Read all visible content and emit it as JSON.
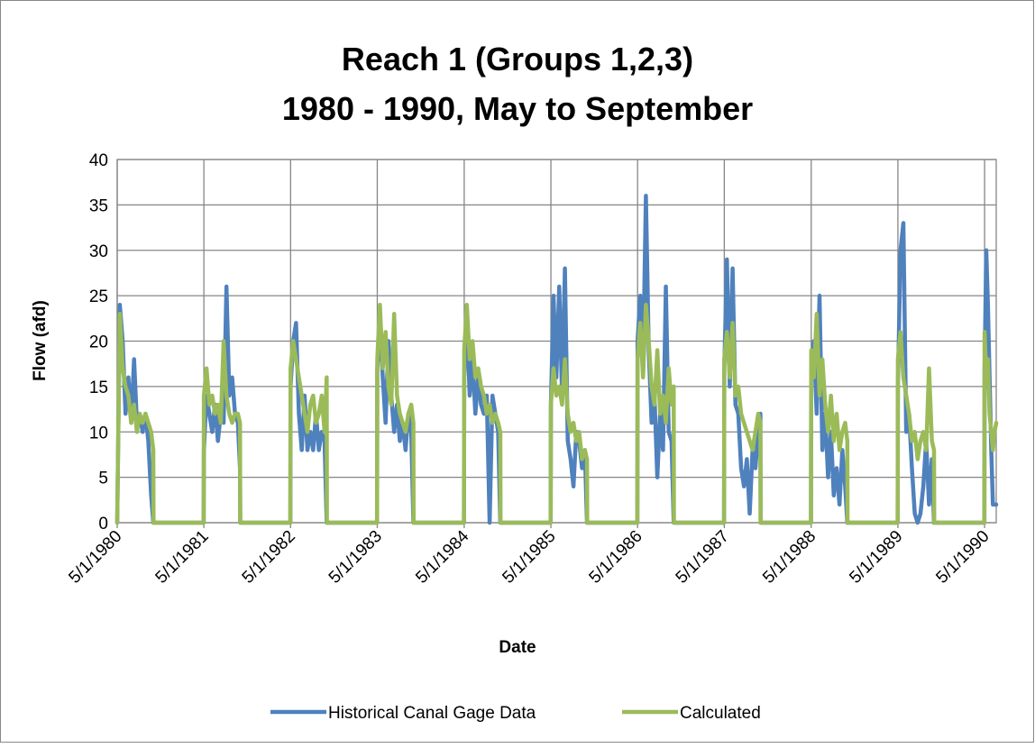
{
  "chart_data": {
    "type": "line",
    "title": "Reach 1 (Groups 1,2,3)",
    "subtitle": "1980 - 1990, May to September",
    "x_label": "Date",
    "y_label": "Flow (afd)",
    "grid": true,
    "legend": "bottom",
    "ylim": [
      0,
      40
    ],
    "yticks": [
      0,
      5,
      10,
      15,
      20,
      25,
      30,
      35,
      40
    ],
    "xlim": [
      "5/1/1980",
      "6/19/1990"
    ],
    "xticks": [
      "5/1/1980",
      "5/1/1981",
      "5/1/1982",
      "5/1/1983",
      "5/1/1984",
      "5/1/1985",
      "5/1/1986",
      "5/1/1987",
      "5/1/1988",
      "5/1/1989",
      "5/1/1990"
    ],
    "x": [
      "5/1/1980",
      "5/12/1980",
      "5/24/1980",
      "6/5/1980",
      "6/17/1980",
      "6/29/1980",
      "7/11/1980",
      "7/23/1980",
      "8/4/1980",
      "8/16/1980",
      "8/28/1980",
      "9/9/1980",
      "9/21/1980",
      "9/30/1980",
      "10/1/1980",
      "4/30/1981",
      "5/1/1981",
      "5/12/1981",
      "5/24/1981",
      "6/5/1981",
      "6/17/1981",
      "6/29/1981",
      "7/11/1981",
      "7/23/1981",
      "8/4/1981",
      "8/16/1981",
      "8/28/1981",
      "9/9/1981",
      "9/21/1981",
      "9/30/1981",
      "10/1/1981",
      "4/30/1982",
      "5/1/1982",
      "5/12/1982",
      "5/24/1982",
      "6/5/1982",
      "6/17/1982",
      "6/29/1982",
      "7/11/1982",
      "7/23/1982",
      "8/4/1982",
      "8/16/1982",
      "8/28/1982",
      "9/9/1982",
      "9/21/1982",
      "9/30/1982",
      "10/1/1982",
      "4/30/1983",
      "5/1/1983",
      "5/12/1983",
      "5/24/1983",
      "6/5/1983",
      "6/17/1983",
      "6/29/1983",
      "7/11/1983",
      "7/23/1983",
      "8/4/1983",
      "8/16/1983",
      "8/28/1983",
      "9/9/1983",
      "9/21/1983",
      "9/30/1983",
      "10/1/1983",
      "4/30/1984",
      "5/1/1984",
      "5/12/1984",
      "5/24/1984",
      "6/5/1984",
      "6/17/1984",
      "6/29/1984",
      "7/11/1984",
      "7/23/1984",
      "8/4/1984",
      "8/16/1984",
      "8/28/1984",
      "9/9/1984",
      "9/21/1984",
      "9/30/1984",
      "10/1/1984",
      "4/30/1985",
      "5/1/1985",
      "5/12/1985",
      "5/24/1985",
      "6/5/1985",
      "6/17/1985",
      "6/29/1985",
      "7/11/1985",
      "7/23/1985",
      "8/4/1985",
      "8/16/1985",
      "8/28/1985",
      "9/9/1985",
      "9/21/1985",
      "9/30/1985",
      "10/1/1985",
      "4/30/1986",
      "5/1/1986",
      "5/12/1986",
      "5/24/1986",
      "6/5/1986",
      "6/17/1986",
      "6/29/1986",
      "7/11/1986",
      "7/23/1986",
      "8/4/1986",
      "8/16/1986",
      "8/28/1986",
      "9/9/1986",
      "9/21/1986",
      "9/30/1986",
      "10/1/1986",
      "4/30/1987",
      "5/1/1987",
      "5/12/1987",
      "5/24/1987",
      "6/5/1987",
      "6/17/1987",
      "6/29/1987",
      "7/11/1987",
      "7/23/1987",
      "8/4/1987",
      "8/16/1987",
      "8/28/1987",
      "9/9/1987",
      "9/21/1987",
      "9/30/1987",
      "10/1/1987",
      "4/30/1988",
      "5/1/1988",
      "5/12/1988",
      "5/24/1988",
      "6/5/1988",
      "6/17/1988",
      "6/29/1988",
      "7/11/1988",
      "7/23/1988",
      "8/4/1988",
      "8/16/1988",
      "8/28/1988",
      "9/9/1988",
      "9/21/1988",
      "9/30/1988",
      "10/1/1988",
      "4/30/1989",
      "5/1/1989",
      "5/12/1989",
      "5/24/1989",
      "6/5/1989",
      "6/17/1989",
      "6/29/1989",
      "7/11/1989",
      "7/23/1989",
      "8/4/1989",
      "8/16/1989",
      "8/28/1989",
      "9/9/1989",
      "9/21/1989",
      "9/30/1989",
      "10/1/1989",
      "4/30/1990",
      "5/1/1990",
      "5/8/1990",
      "5/15/1990",
      "5/22/1990",
      "5/29/1990",
      "6/5/1990",
      "6/12/1990",
      "6/19/1990"
    ],
    "series": [
      {
        "name": "Historical Canal Gage Data",
        "color": "#4f81bd",
        "values": [
          0,
          24,
          20,
          12,
          16,
          11,
          18,
          11,
          12,
          10,
          12,
          9,
          3,
          0,
          0,
          0,
          8,
          14,
          12,
          10,
          13,
          9,
          12,
          11,
          26,
          14,
          16,
          12,
          11,
          6,
          0,
          0,
          15,
          20,
          22,
          12,
          8,
          14,
          8,
          10,
          8,
          12,
          8,
          10,
          9,
          0,
          0,
          0,
          17,
          22,
          16,
          11,
          20,
          14,
          10,
          13,
          9,
          11,
          8,
          12,
          10,
          0,
          0,
          0,
          16,
          23,
          14,
          18,
          12,
          16,
          13,
          12,
          14,
          0,
          14,
          12,
          10,
          0,
          0,
          0,
          13,
          25,
          16,
          26,
          14,
          28,
          9,
          7,
          4,
          10,
          9,
          6,
          8,
          0,
          0,
          0,
          20,
          25,
          17,
          36,
          19,
          11,
          14,
          5,
          12,
          8,
          26,
          10,
          9,
          0,
          0,
          0,
          17,
          29,
          15,
          28,
          13,
          12,
          6,
          4,
          7,
          1,
          8,
          6,
          10,
          12,
          0,
          0,
          17,
          20,
          12,
          25,
          8,
          12,
          5,
          10,
          3,
          6,
          2,
          8,
          4,
          0,
          0,
          0,
          15,
          30,
          33,
          10,
          12,
          6,
          1,
          0,
          1,
          4,
          9,
          2,
          7,
          0,
          0,
          0,
          17,
          30,
          24,
          16,
          8,
          2,
          2,
          2
        ]
      },
      {
        "name": "Calculated",
        "color": "#9bbb59",
        "values": [
          0,
          23,
          17,
          15,
          14,
          11,
          13,
          10,
          12,
          11,
          12,
          11,
          10,
          8,
          0,
          0,
          14,
          17,
          13,
          14,
          12,
          13,
          11,
          20,
          14,
          12,
          11,
          12,
          12,
          11,
          0,
          0,
          17,
          20,
          18,
          16,
          14,
          12,
          10,
          13,
          14,
          11,
          12,
          14,
          10,
          16,
          0,
          0,
          18,
          24,
          17,
          21,
          15,
          13,
          23,
          14,
          12,
          11,
          10,
          12,
          13,
          11,
          0,
          0,
          19,
          24,
          18,
          20,
          16,
          17,
          15,
          14,
          12,
          13,
          11,
          12,
          11,
          10,
          0,
          0,
          13,
          17,
          14,
          15,
          13,
          18,
          12,
          10,
          11,
          9,
          10,
          7,
          8,
          7,
          0,
          0,
          18,
          22,
          16,
          24,
          20,
          15,
          13,
          19,
          12,
          14,
          11,
          17,
          13,
          15,
          0,
          0,
          18,
          21,
          16,
          22,
          14,
          15,
          12,
          11,
          10,
          9,
          8,
          10,
          12,
          11,
          0,
          0,
          19,
          16,
          23,
          14,
          18,
          13,
          10,
          14,
          9,
          12,
          8,
          10,
          11,
          9,
          0,
          0,
          18,
          21,
          16,
          14,
          12,
          9,
          10,
          7,
          9,
          10,
          8,
          17,
          9,
          8,
          0,
          0,
          21,
          16,
          18,
          12,
          10,
          8,
          10,
          11
        ]
      }
    ]
  }
}
